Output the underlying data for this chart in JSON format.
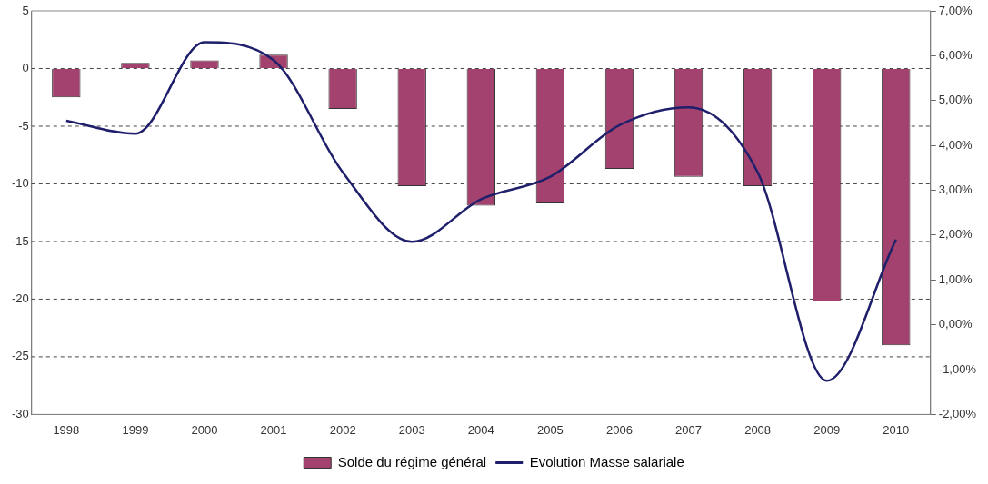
{
  "chart_data": {
    "type": "bar",
    "categories": [
      "1998",
      "1999",
      "2000",
      "2001",
      "2002",
      "2003",
      "2004",
      "2005",
      "2006",
      "2007",
      "2008",
      "2009",
      "2010"
    ],
    "series": [
      {
        "name": "Solde du régime général",
        "color": "#a3426e",
        "values": [
          -2.5,
          0.5,
          0.7,
          1.2,
          -3.5,
          -10.2,
          -11.9,
          -11.7,
          -8.7,
          -9.4,
          -10.2,
          -20.2,
          -24
        ]
      },
      {
        "name": "Evolution Masse salariale",
        "type": "line",
        "axis": "y2",
        "color": "#1f1f6b",
        "values": [
          4.55,
          4.26,
          6.3,
          5.9,
          3.4,
          1.85,
          2.8,
          3.3,
          4.45,
          4.85,
          3.4,
          -1.25,
          1.9
        ]
      }
    ],
    "ylim": [
      -30,
      5
    ],
    "yticks": [
      -30,
      -25,
      -20,
      -15,
      -10,
      -5,
      0,
      5
    ],
    "y2lim": [
      -2,
      7
    ],
    "y2ticks": [
      {
        "value": -2,
        "label": "-2,00%"
      },
      {
        "value": -1,
        "label": "-1,00%"
      },
      {
        "value": 0,
        "label": "0,00%"
      },
      {
        "value": 1,
        "label": "1,00%"
      },
      {
        "value": 2,
        "label": "2,00%"
      },
      {
        "value": 3,
        "label": "3,00%"
      },
      {
        "value": 4,
        "label": "4,00%"
      },
      {
        "value": 5,
        "label": "5,00%"
      },
      {
        "value": 6,
        "label": "6,00%"
      },
      {
        "value": 7,
        "label": "7,00%"
      }
    ],
    "grid": "y",
    "legend": "bottom",
    "marker": "none",
    "line_style": "solid"
  }
}
